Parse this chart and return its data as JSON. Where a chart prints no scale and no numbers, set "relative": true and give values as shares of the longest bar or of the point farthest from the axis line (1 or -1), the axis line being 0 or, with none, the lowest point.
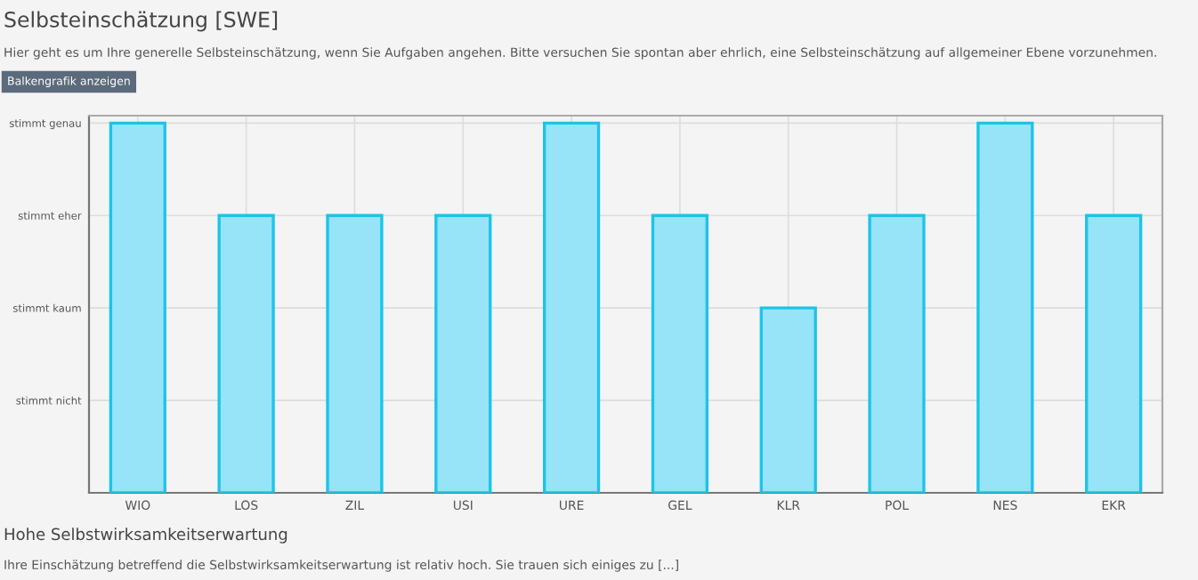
{
  "chart_data": {
    "type": "bar",
    "title": "Selbsteinschätzung [SWE]",
    "subtitle": "Hier geht es um Ihre generelle Selbsteinschätzung, wenn Sie Aufgaben angehen. Bitte versuchen Sie spontan aber ehrlich, eine Selbsteinschätzung auf allgemeiner Ebene vorzunehmen.",
    "annotations": [
      "Balkengrafik anzeigen",
      "Hohe Selbstwirksamkeitserwartung",
      "Ihre Einschätzung betreffend die Selbstwirksamkeitserwartung ist relativ hoch. Sie trauen sich einiges zu [...]",
      "stimmt nicht",
      "stimmt kaum",
      "stimmt eher",
      "stimmt genau"
    ],
    "relative": true,
    "categories": [
      "WIO",
      "LOS",
      "ZIL",
      "USI",
      "URE",
      "GEL",
      "KLR",
      "POL",
      "NES",
      "EKR"
    ],
    "values": [
      1,
      0.75,
      0.75,
      0.75,
      1,
      0.75,
      0.5,
      0.75,
      1,
      0.75
    ],
    "color": "#97e3f7",
    "grid": true
  }
}
